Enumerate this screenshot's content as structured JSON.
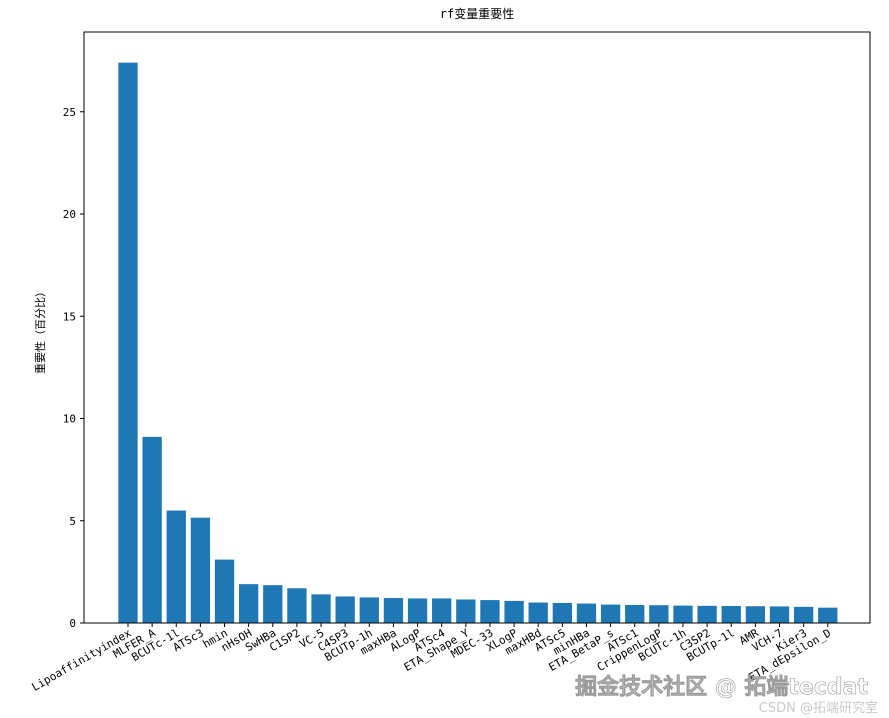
{
  "chart_data": {
    "type": "bar",
    "title": "rf变量重要性",
    "xlabel": "",
    "ylabel": "重要性（百分比）",
    "ylim": [
      0,
      28.9
    ],
    "yticks": [
      0,
      5,
      10,
      15,
      20,
      25
    ],
    "grid": false,
    "bar_color": "#1f77b4",
    "categories": [
      "Lipoaffinityindex",
      "MLFER_A",
      "BCUTc-1l",
      "ATSc3",
      "hmin",
      "nHsOH",
      "SwHBa",
      "C1SP2",
      "VC-5",
      "C4SP3",
      "BCUTp-1h",
      "maxHBa",
      "ALogP",
      "ATSc4",
      "ETA_Shape_Y",
      "MDEC-33",
      "XLogP",
      "maxHBd",
      "ATSc5",
      "minHBa",
      "ETA_BetaP_s",
      "ATSc1",
      "CrippenLogP",
      "BCUTc-1h",
      "C3SP2",
      "BCUTp-1l",
      "AMR",
      "VCH-7",
      "Kier3",
      "ETA_dEpsilon_D"
    ],
    "values": [
      27.4,
      9.1,
      5.5,
      5.15,
      3.1,
      1.9,
      1.85,
      1.7,
      1.4,
      1.3,
      1.25,
      1.22,
      1.2,
      1.2,
      1.15,
      1.12,
      1.08,
      1.0,
      0.98,
      0.95,
      0.9,
      0.88,
      0.87,
      0.85,
      0.84,
      0.83,
      0.82,
      0.81,
      0.79,
      0.75
    ]
  },
  "watermark": {
    "main": "掘金技术社区 @ 拓端tecdat",
    "sub": "CSDN @拓端研究室"
  }
}
